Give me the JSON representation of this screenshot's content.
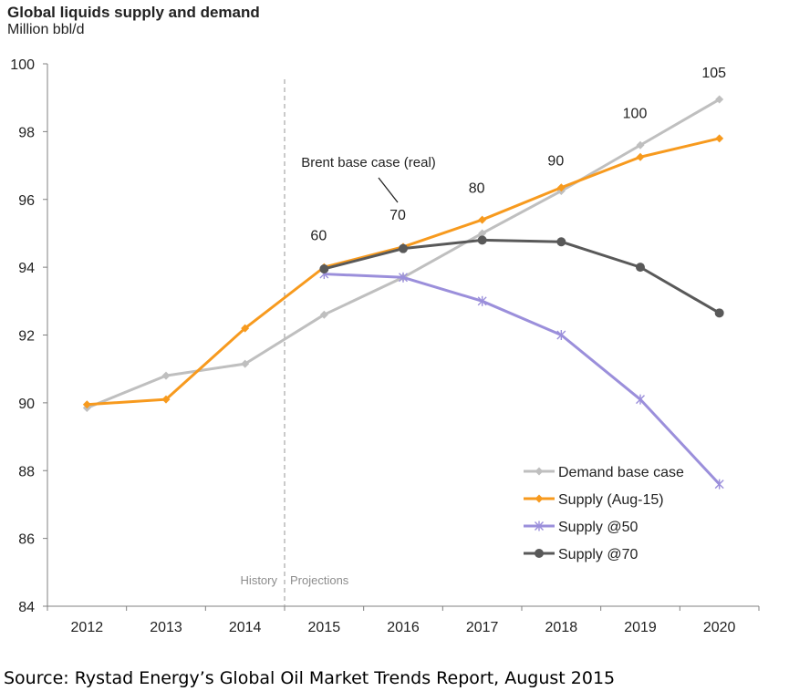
{
  "header": {
    "title": "Global liquids supply and demand",
    "subtitle": "Million bbl/d"
  },
  "footer": {
    "source": "Source: Rystad Energy’s Global Oil Market Trends Report, August 2015"
  },
  "colors": {
    "demand": "#BFBFBF",
    "supply_aug15": "#F79A1E",
    "supply_50": "#9B8FDB",
    "supply_70": "#595959",
    "axis": "#808080",
    "text": "#222222"
  },
  "chart_data": {
    "type": "line",
    "title": "Global liquids supply and demand",
    "ylabel": "Million bbl/d",
    "xlabel": "",
    "categories": [
      "2012",
      "2013",
      "2014",
      "2015",
      "2016",
      "2017",
      "2018",
      "2019",
      "2020"
    ],
    "ylim": [
      84,
      100
    ],
    "yticks": [
      84,
      86,
      88,
      90,
      92,
      94,
      96,
      98,
      100
    ],
    "grid": false,
    "legend_position": "bottom-right",
    "series": [
      {
        "name": "Demand base case",
        "marker": "diamond",
        "values": [
          89.85,
          90.8,
          91.15,
          92.6,
          93.7,
          95.0,
          96.25,
          97.6,
          98.95
        ]
      },
      {
        "name": "Supply (Aug-15)",
        "marker": "diamond",
        "values": [
          89.95,
          90.1,
          92.2,
          94.0,
          94.6,
          95.4,
          96.35,
          97.25,
          97.8
        ]
      },
      {
        "name": "Supply @50",
        "marker": "star",
        "values": [
          null,
          null,
          null,
          93.8,
          93.7,
          93.0,
          92.0,
          90.1,
          87.6
        ]
      },
      {
        "name": "Supply @70",
        "marker": "circle",
        "values": [
          null,
          null,
          null,
          93.95,
          94.55,
          94.8,
          94.75,
          94.0,
          92.65
        ]
      }
    ],
    "divider": {
      "after_category": "2014",
      "left_label": "History",
      "right_label": "Projections"
    },
    "annotations": {
      "brent_label": "Brent base case (real)",
      "brent_prices": [
        {
          "category": "2015",
          "y": 94.8,
          "text": "60"
        },
        {
          "category": "2016",
          "y": 95.4,
          "text": "70"
        },
        {
          "category": "2017",
          "y": 96.2,
          "text": "80"
        },
        {
          "category": "2018",
          "y": 97.0,
          "text": "90"
        },
        {
          "category": "2019",
          "y": 98.4,
          "text": "100"
        },
        {
          "category": "2020",
          "y": 99.6,
          "text": "105"
        }
      ]
    }
  }
}
